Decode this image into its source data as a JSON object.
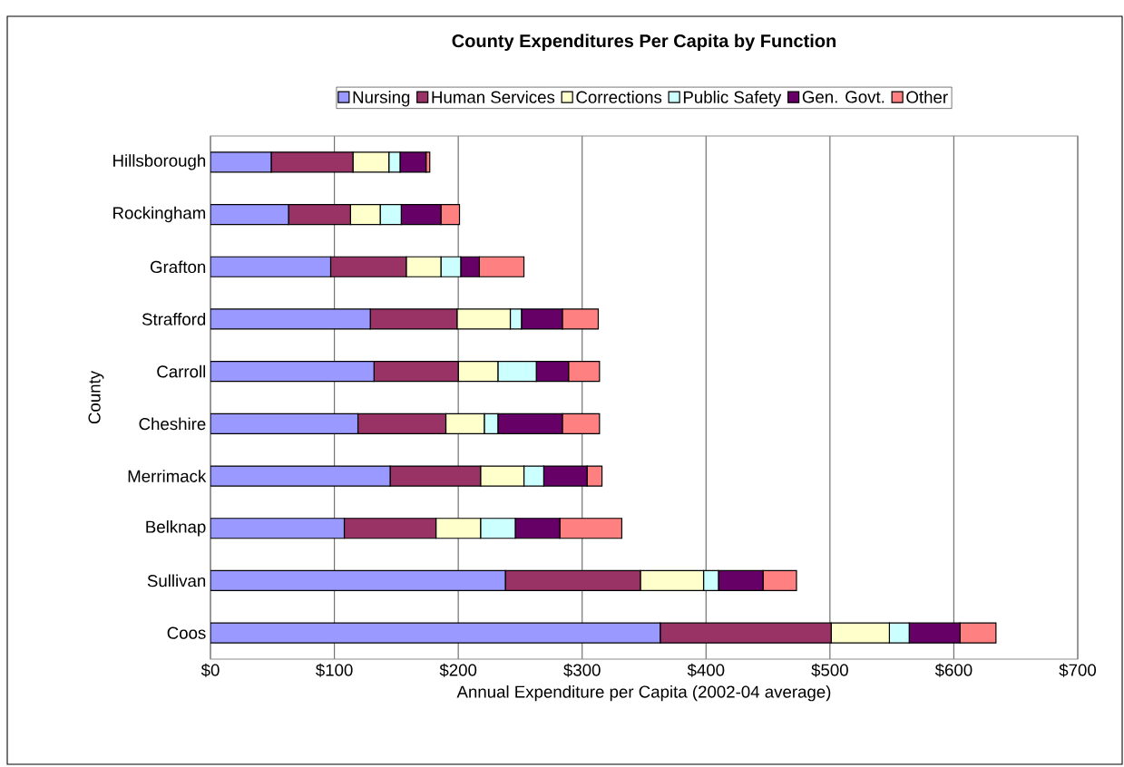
{
  "chart_data": {
    "type": "bar",
    "orientation": "horizontal",
    "stacked": true,
    "title": "County Expenditures Per Capita by Function",
    "xlabel": "Annual Expenditure per Capita (2002-04 average)",
    "ylabel": "County",
    "categories": [
      "Hillsborough",
      "Rockingham",
      "Grafton",
      "Strafford",
      "Carroll",
      "Cheshire",
      "Merrimack",
      "Belknap",
      "Sullivan",
      "Coos"
    ],
    "series": [
      {
        "name": "Nursing",
        "color": "#9999ff",
        "values": [
          49,
          63,
          97,
          129,
          132,
          119,
          145,
          108,
          238,
          363
        ]
      },
      {
        "name": "Human Services",
        "color": "#993366",
        "values": [
          66,
          50,
          61,
          70,
          68,
          71,
          73,
          74,
          109,
          138
        ]
      },
      {
        "name": "Corrections",
        "color": "#ffffcc",
        "values": [
          29,
          24,
          28,
          43,
          32,
          31,
          35,
          36,
          51,
          47
        ]
      },
      {
        "name": "Public Safety",
        "color": "#ccffff",
        "values": [
          9,
          17,
          16,
          9,
          31,
          11,
          16,
          28,
          12,
          16
        ]
      },
      {
        "name": "Gen. Govt.",
        "color": "#660066",
        "values": [
          21,
          32,
          15,
          33,
          26,
          52,
          35,
          36,
          36,
          41
        ]
      },
      {
        "name": "Other",
        "color": "#ff8080",
        "values": [
          3,
          15,
          36,
          29,
          25,
          30,
          12,
          50,
          27,
          29
        ]
      }
    ],
    "xlim": [
      0,
      700
    ],
    "xticks": [
      {
        "value": 0,
        "label": "$0"
      },
      {
        "value": 100,
        "label": "$100"
      },
      {
        "value": 200,
        "label": "$200"
      },
      {
        "value": 300,
        "label": "$300"
      },
      {
        "value": 400,
        "label": "$400"
      },
      {
        "value": 500,
        "label": "$500"
      },
      {
        "value": 600,
        "label": "$600"
      },
      {
        "value": 700,
        "label": "$700"
      }
    ],
    "grid": "x",
    "legend": "top"
  }
}
